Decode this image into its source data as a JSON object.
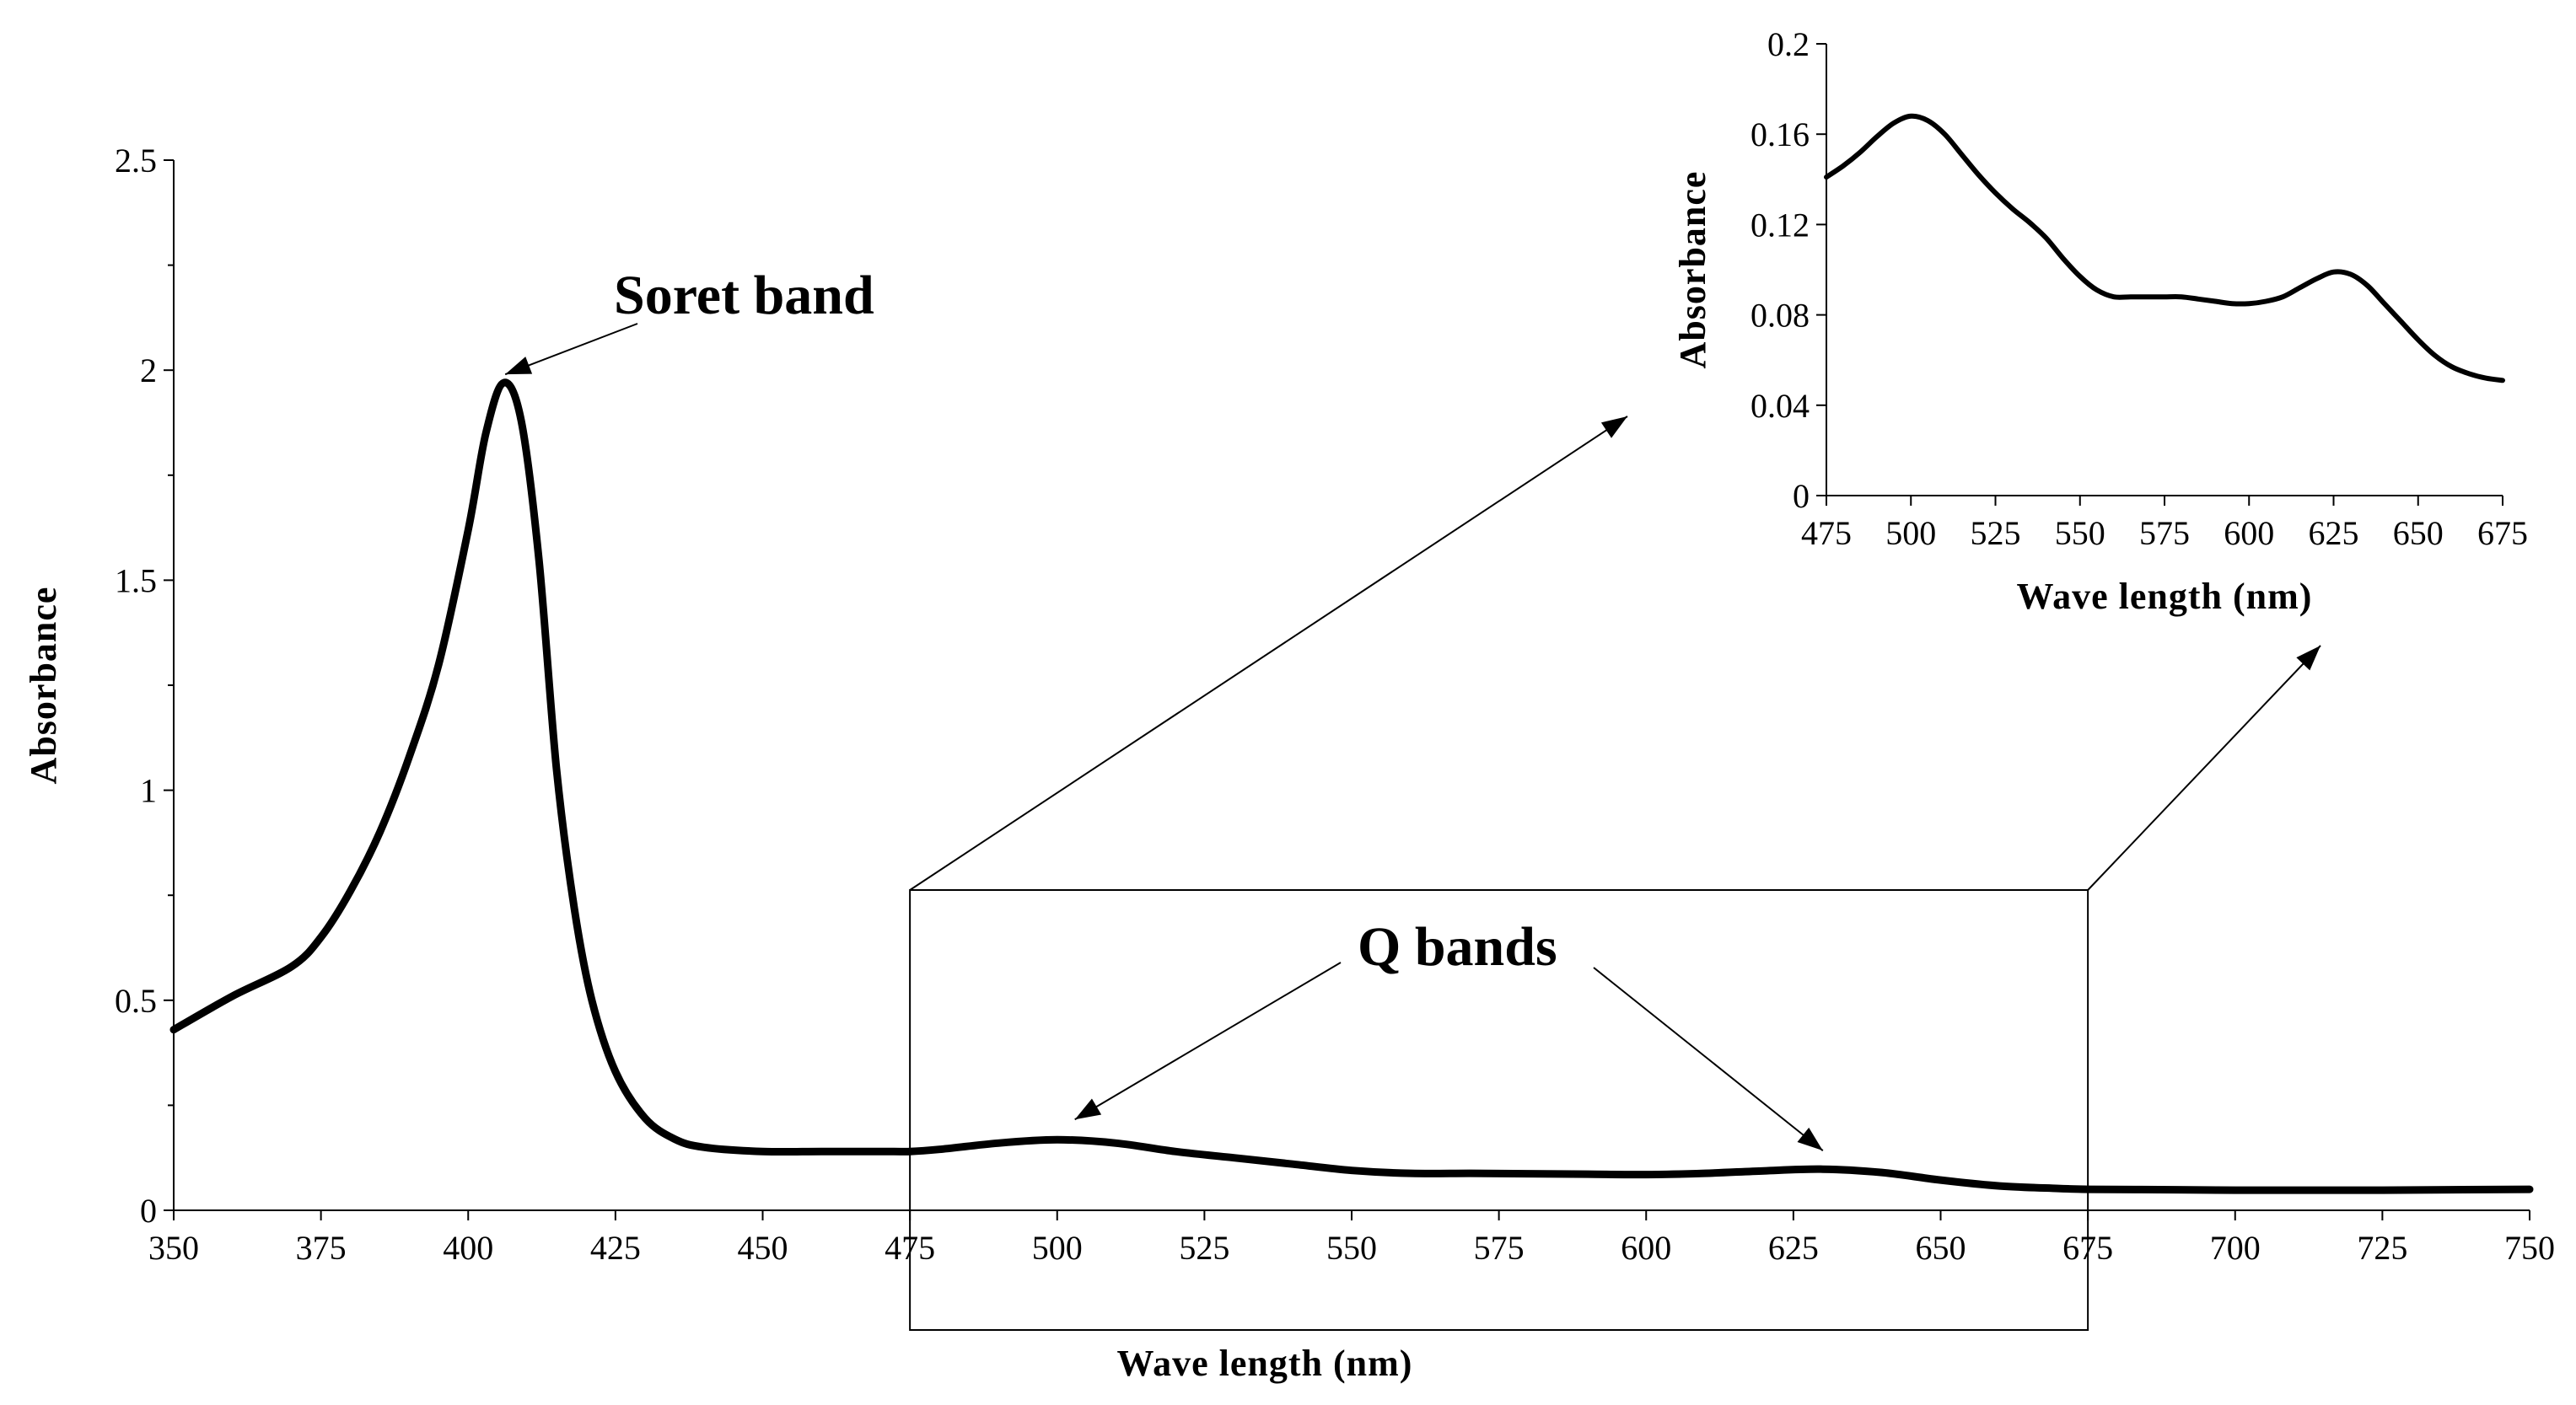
{
  "chart_data": [
    {
      "type": "line",
      "title": "",
      "xlabel": "Wave length (nm)",
      "ylabel": "Absorbance",
      "xlim": [
        350,
        750
      ],
      "ylim": [
        0,
        2.5
      ],
      "xticks": [
        "350",
        "375",
        "400",
        "425",
        "450",
        "475",
        "500",
        "525",
        "550",
        "575",
        "600",
        "625",
        "650",
        "675",
        "700",
        "725",
        "750"
      ],
      "yticks": [
        "0",
        "0.5",
        "1",
        "1.5",
        "2",
        "2.5"
      ],
      "grid": false,
      "series": [
        {
          "x": [
            350,
            360,
            370,
            375,
            380,
            385,
            390,
            395,
            400,
            403,
            406,
            409,
            412,
            415,
            418,
            421,
            425,
            430,
            435,
            440,
            450,
            460,
            470,
            475,
            480,
            490,
            500,
            510,
            520,
            530,
            540,
            550,
            560,
            570,
            580,
            590,
            600,
            610,
            620,
            630,
            640,
            650,
            660,
            670,
            675,
            690,
            700,
            710,
            725,
            750
          ],
          "y": [
            0.43,
            0.51,
            0.58,
            0.65,
            0.76,
            0.9,
            1.08,
            1.3,
            1.62,
            1.85,
            1.97,
            1.88,
            1.55,
            1.05,
            0.72,
            0.5,
            0.33,
            0.22,
            0.17,
            0.15,
            0.14,
            0.14,
            0.14,
            0.14,
            0.145,
            0.16,
            0.168,
            0.16,
            0.14,
            0.125,
            0.11,
            0.095,
            0.088,
            0.088,
            0.087,
            0.086,
            0.085,
            0.088,
            0.094,
            0.098,
            0.09,
            0.072,
            0.058,
            0.052,
            0.05,
            0.049,
            0.048,
            0.048,
            0.048,
            0.05
          ]
        }
      ],
      "annotations": [
        "Soret band",
        "Q bands"
      ]
    },
    {
      "type": "line",
      "title": "",
      "xlabel": "Wave length (nm)",
      "ylabel": "Absorbance",
      "xlim": [
        475,
        675
      ],
      "ylim": [
        0,
        0.2
      ],
      "xticks": [
        "475",
        "500",
        "525",
        "550",
        "575",
        "600",
        "625",
        "650",
        "675"
      ],
      "yticks": [
        "0",
        "0.04",
        "0.08",
        "0.12",
        "0.16",
        "0.2"
      ],
      "grid": false,
      "series": [
        {
          "x": [
            475,
            480,
            485,
            490,
            495,
            500,
            505,
            510,
            515,
            520,
            525,
            530,
            535,
            540,
            545,
            550,
            555,
            560,
            565,
            570,
            575,
            580,
            585,
            590,
            595,
            600,
            605,
            610,
            615,
            620,
            625,
            630,
            635,
            640,
            645,
            650,
            655,
            660,
            665,
            670,
            675
          ],
          "y": [
            0.141,
            0.146,
            0.152,
            0.159,
            0.165,
            0.168,
            0.166,
            0.16,
            0.151,
            0.142,
            0.134,
            0.127,
            0.121,
            0.114,
            0.105,
            0.097,
            0.091,
            0.088,
            0.088,
            0.088,
            0.088,
            0.088,
            0.087,
            0.086,
            0.085,
            0.085,
            0.086,
            0.088,
            0.092,
            0.096,
            0.099,
            0.098,
            0.093,
            0.085,
            0.077,
            0.069,
            0.062,
            0.057,
            0.054,
            0.052,
            0.051
          ]
        }
      ]
    }
  ]
}
